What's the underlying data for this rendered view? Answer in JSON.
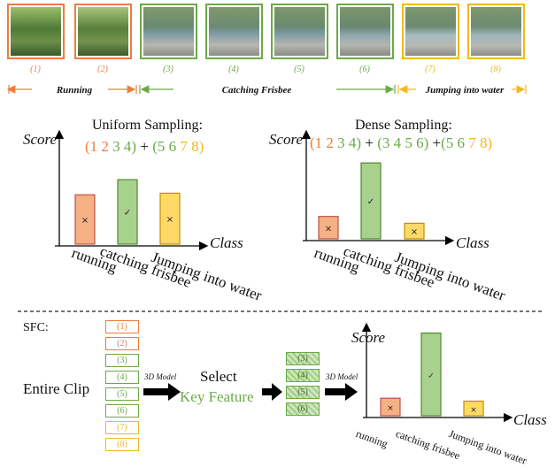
{
  "frames": [
    {
      "label": "(1)",
      "seg": "running"
    },
    {
      "label": "(2)",
      "seg": "running"
    },
    {
      "label": "(3)",
      "seg": "catching"
    },
    {
      "label": "(4)",
      "seg": "catching"
    },
    {
      "label": "(5)",
      "seg": "catching"
    },
    {
      "label": "(6)",
      "seg": "catching"
    },
    {
      "label": "(7)",
      "seg": "jumping"
    },
    {
      "label": "(8)",
      "seg": "jumping"
    }
  ],
  "segments": {
    "running": "Running",
    "catching": "Catching Frisbee",
    "jumping": "Jumping into water"
  },
  "colors": {
    "running": "#ec7d3c",
    "catching": "#6aaa46",
    "jumping": "#f2b820"
  },
  "uniform": {
    "title": "Uniform Sampling:",
    "groups": [
      {
        "seg": "running",
        "text": "(1 2 "
      },
      {
        "seg": "catching",
        "text": "3 4)"
      },
      {
        "seg": "plain",
        "text": " + "
      },
      {
        "seg": "catching",
        "text": "(5 6 "
      },
      {
        "seg": "jumping",
        "text": "7 8)"
      }
    ]
  },
  "dense": {
    "title": "Dense Sampling:",
    "groups": [
      {
        "seg": "running",
        "text": "(1 2 "
      },
      {
        "seg": "catching",
        "text": "3 4)"
      },
      {
        "seg": "plain",
        "text": " + "
      },
      {
        "seg": "catching",
        "text": "(3 4 5 6)"
      },
      {
        "seg": "plain",
        "text": " +"
      },
      {
        "seg": "catching",
        "text": "(5 6 "
      },
      {
        "seg": "jumping",
        "text": "7 8)"
      }
    ]
  },
  "axis": {
    "score": "Score",
    "class": "Class"
  },
  "classes": [
    "running",
    "catching frisbee",
    "Jumping into water"
  ],
  "marks": {
    "cross": "×",
    "check": "✓"
  },
  "sfc": {
    "label": "SFC:",
    "entire_clip": "Entire Clip",
    "model_label": "3D Model",
    "select": "Select",
    "key_feature": "Key Feature",
    "clip_boxes": [
      "(1)",
      "(2)",
      "(3)",
      "(4)",
      "(5)",
      "(6)",
      "(7)",
      "(8)"
    ],
    "clip_segs": [
      "running",
      "running",
      "catching",
      "catching",
      "catching",
      "catching",
      "jumping",
      "jumping"
    ],
    "key_boxes": [
      "(3)",
      "(4)",
      "(5)",
      "(6)"
    ]
  },
  "chart_data": [
    {
      "type": "bar",
      "name": "uniform",
      "categories": [
        "running",
        "catching frisbee",
        "Jumping into water"
      ],
      "values": [
        0.62,
        0.81,
        0.64
      ],
      "marks": [
        "×",
        "✓",
        "×"
      ]
    },
    {
      "type": "bar",
      "name": "dense",
      "categories": [
        "running",
        "catching frisbee",
        "Jumping into water"
      ],
      "values": [
        0.23,
        0.78,
        0.16
      ],
      "marks": [
        "×",
        "✓",
        "×"
      ]
    },
    {
      "type": "bar",
      "name": "sfc",
      "categories": [
        "running",
        "catching frisbee",
        "Jumping into water"
      ],
      "values": [
        0.18,
        0.85,
        0.15
      ],
      "marks": [
        "×",
        "✓",
        "×"
      ]
    }
  ]
}
